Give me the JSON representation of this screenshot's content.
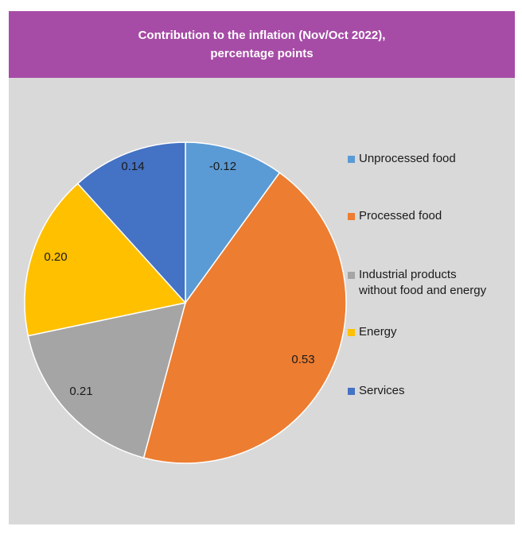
{
  "title_line1": "Contribution to the inflation (Nov/Oct 2022),",
  "title_line2": "percentage points",
  "chart_data": {
    "type": "pie",
    "title": "Contribution to the inflation (Nov/Oct 2022), percentage points",
    "start_angle_deg": 0,
    "direction": "clockwise",
    "legend_position": "right",
    "slices": [
      {
        "name": "Unprocessed food",
        "value": -0.12,
        "label": "-0.12",
        "display_share": 0.099,
        "color": "#5B9BD5"
      },
      {
        "name": "Processed food",
        "value": 0.53,
        "label": "0.53",
        "display_share": 0.439,
        "color": "#ED7D31"
      },
      {
        "name": "Industrial products without food and energy",
        "value": 0.21,
        "label": "0.21",
        "display_share": 0.174,
        "color": "#A5A5A5"
      },
      {
        "name": "Energy",
        "value": 0.2,
        "label": "0.20",
        "display_share": 0.165,
        "color": "#FFC000"
      },
      {
        "name": "Services",
        "value": 0.14,
        "label": "0.14",
        "display_share": 0.116,
        "color": "#4472C4"
      }
    ],
    "legend": [
      {
        "line1": "Unprocessed food",
        "line2": ""
      },
      {
        "line1": "Processed food",
        "line2": ""
      },
      {
        "line1": "Industrial products",
        "line2": "without food and energy"
      },
      {
        "line1": "Energy",
        "line2": ""
      },
      {
        "line1": "Services",
        "line2": ""
      }
    ]
  }
}
